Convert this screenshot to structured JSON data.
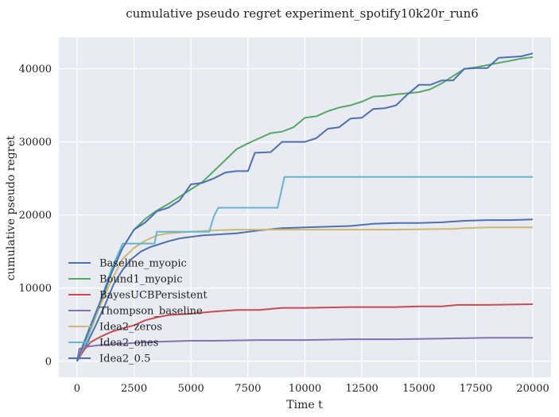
{
  "chart_data": {
    "type": "line",
    "title": "cumulative pseudo regret experiment_spotify10k20r_run6",
    "xlabel": "Time t",
    "ylabel": "cumulative pseudo regret",
    "xlim": [
      -800,
      20800
    ],
    "ylim": [
      -2200,
      44300
    ],
    "xticks": [
      0,
      2500,
      5000,
      7500,
      10000,
      12500,
      15000,
      17500,
      20000
    ],
    "yticks": [
      0,
      10000,
      20000,
      30000,
      40000
    ],
    "grid": true,
    "legend_position": "lower-left",
    "series": [
      {
        "name": "Baseline_myopic",
        "color": "#4c72b0",
        "points": [
          [
            0,
            0
          ],
          [
            400,
            2200
          ],
          [
            800,
            4800
          ],
          [
            1200,
            7500
          ],
          [
            1600,
            10500
          ],
          [
            2000,
            12500
          ],
          [
            2400,
            14000
          ],
          [
            2800,
            15000
          ],
          [
            3200,
            15600
          ],
          [
            3600,
            16000
          ],
          [
            4000,
            16400
          ],
          [
            4500,
            16800
          ],
          [
            5000,
            17000
          ],
          [
            5500,
            17200
          ],
          [
            6000,
            17300
          ],
          [
            7000,
            17500
          ],
          [
            8000,
            17900
          ],
          [
            9000,
            18200
          ],
          [
            10000,
            18300
          ],
          [
            11000,
            18400
          ],
          [
            12000,
            18500
          ],
          [
            13000,
            18800
          ],
          [
            14000,
            18900
          ],
          [
            15000,
            18900
          ],
          [
            16000,
            19000
          ],
          [
            17000,
            19200
          ],
          [
            18000,
            19300
          ],
          [
            19000,
            19300
          ],
          [
            20000,
            19400
          ]
        ]
      },
      {
        "name": "Bound1_myopic",
        "color": "#55a868",
        "points": [
          [
            0,
            0
          ],
          [
            500,
            3500
          ],
          [
            1000,
            7500
          ],
          [
            1500,
            12000
          ],
          [
            2000,
            15500
          ],
          [
            2500,
            18000
          ],
          [
            3000,
            19500
          ],
          [
            3500,
            20600
          ],
          [
            4000,
            21500
          ],
          [
            4500,
            22500
          ],
          [
            5000,
            23500
          ],
          [
            5500,
            24500
          ],
          [
            6000,
            26000
          ],
          [
            6500,
            27500
          ],
          [
            7000,
            29000
          ],
          [
            7500,
            29800
          ],
          [
            8000,
            30500
          ],
          [
            8500,
            31200
          ],
          [
            9000,
            31400
          ],
          [
            9500,
            32000
          ],
          [
            10000,
            33300
          ],
          [
            10500,
            33500
          ],
          [
            11000,
            34200
          ],
          [
            11500,
            34700
          ],
          [
            12000,
            35000
          ],
          [
            12500,
            35500
          ],
          [
            13000,
            36200
          ],
          [
            13500,
            36300
          ],
          [
            14000,
            36500
          ],
          [
            15000,
            36800
          ],
          [
            15500,
            37200
          ],
          [
            16000,
            38000
          ],
          [
            16500,
            39000
          ],
          [
            17000,
            40000
          ],
          [
            17500,
            40200
          ],
          [
            18000,
            40500
          ],
          [
            18500,
            40800
          ],
          [
            19000,
            41100
          ],
          [
            19500,
            41400
          ],
          [
            20000,
            41600
          ]
        ]
      },
      {
        "name": "BayesUCBPersistent",
        "color": "#c44e52",
        "points": [
          [
            0,
            0
          ],
          [
            300,
            1500
          ],
          [
            600,
            2600
          ],
          [
            1000,
            3300
          ],
          [
            1500,
            4000
          ],
          [
            2000,
            4500
          ],
          [
            2500,
            4900
          ],
          [
            3000,
            5600
          ],
          [
            3500,
            6000
          ],
          [
            4000,
            6300
          ],
          [
            5000,
            6500
          ],
          [
            6000,
            6800
          ],
          [
            6500,
            6900
          ],
          [
            7000,
            7000
          ],
          [
            8000,
            7000
          ],
          [
            9000,
            7300
          ],
          [
            10000,
            7300
          ],
          [
            12000,
            7400
          ],
          [
            14000,
            7400
          ],
          [
            15000,
            7500
          ],
          [
            16000,
            7500
          ],
          [
            16700,
            7700
          ],
          [
            18000,
            7700
          ],
          [
            20000,
            7800
          ]
        ]
      },
      {
        "name": "Thompson_baseline",
        "color": "#8172b2",
        "points": [
          [
            0,
            0
          ],
          [
            100,
            1700
          ],
          [
            500,
            2000
          ],
          [
            1000,
            2200
          ],
          [
            2000,
            2400
          ],
          [
            3000,
            2600
          ],
          [
            4000,
            2700
          ],
          [
            5000,
            2800
          ],
          [
            6000,
            2800
          ],
          [
            8000,
            2900
          ],
          [
            10000,
            2900
          ],
          [
            12000,
            3000
          ],
          [
            14000,
            3000
          ],
          [
            16000,
            3100
          ],
          [
            18000,
            3200
          ],
          [
            20000,
            3200
          ]
        ]
      },
      {
        "name": "Idea2_zeros",
        "color": "#ccb974",
        "points": [
          [
            0,
            0
          ],
          [
            500,
            3500
          ],
          [
            1000,
            7500
          ],
          [
            1500,
            11000
          ],
          [
            2000,
            14000
          ],
          [
            2500,
            15500
          ],
          [
            3000,
            16500
          ],
          [
            3500,
            17200
          ],
          [
            4000,
            17500
          ],
          [
            5000,
            17700
          ],
          [
            6000,
            17900
          ],
          [
            7000,
            18000
          ],
          [
            8000,
            18000
          ],
          [
            10000,
            18000
          ],
          [
            12000,
            18000
          ],
          [
            14000,
            18000
          ],
          [
            16000,
            18100
          ],
          [
            16500,
            18100
          ],
          [
            17000,
            18200
          ],
          [
            18000,
            18300
          ],
          [
            20000,
            18300
          ]
        ]
      },
      {
        "name": "Idea2_ones",
        "color": "#64b5cd",
        "points": [
          [
            0,
            0
          ],
          [
            500,
            3700
          ],
          [
            1000,
            8000
          ],
          [
            1500,
            12500
          ],
          [
            2000,
            16100
          ],
          [
            2500,
            16100
          ],
          [
            3000,
            16100
          ],
          [
            3400,
            16100
          ],
          [
            3500,
            17700
          ],
          [
            4000,
            17700
          ],
          [
            5000,
            17700
          ],
          [
            5800,
            17700
          ],
          [
            6000,
            19800
          ],
          [
            6200,
            21000
          ],
          [
            7000,
            21000
          ],
          [
            8000,
            21000
          ],
          [
            8800,
            21000
          ],
          [
            9100,
            25200
          ],
          [
            10000,
            25200
          ],
          [
            12000,
            25200
          ],
          [
            14000,
            25200
          ],
          [
            16000,
            25200
          ],
          [
            18000,
            25200
          ],
          [
            20000,
            25200
          ]
        ]
      },
      {
        "name": "Idea2_0.5",
        "color": "#4c72b0",
        "points": [
          [
            0,
            0
          ],
          [
            500,
            4200
          ],
          [
            1000,
            8000
          ],
          [
            1500,
            12000
          ],
          [
            2000,
            15500
          ],
          [
            2500,
            18000
          ],
          [
            3000,
            19000
          ],
          [
            3500,
            20500
          ],
          [
            4000,
            21000
          ],
          [
            4500,
            22000
          ],
          [
            5000,
            24200
          ],
          [
            5500,
            24400
          ],
          [
            6000,
            25000
          ],
          [
            6500,
            25800
          ],
          [
            7000,
            26000
          ],
          [
            7500,
            26000
          ],
          [
            7800,
            28500
          ],
          [
            8500,
            28600
          ],
          [
            9000,
            30000
          ],
          [
            10000,
            30000
          ],
          [
            10500,
            30500
          ],
          [
            11000,
            31800
          ],
          [
            11500,
            32000
          ],
          [
            12000,
            33200
          ],
          [
            12500,
            33300
          ],
          [
            13000,
            34500
          ],
          [
            13500,
            34600
          ],
          [
            14000,
            35000
          ],
          [
            14500,
            36500
          ],
          [
            15000,
            37800
          ],
          [
            15500,
            37800
          ],
          [
            16000,
            38400
          ],
          [
            16500,
            38400
          ],
          [
            17000,
            40000
          ],
          [
            17500,
            40100
          ],
          [
            18000,
            40100
          ],
          [
            18500,
            41500
          ],
          [
            19000,
            41600
          ],
          [
            19500,
            41700
          ],
          [
            20000,
            42100
          ]
        ]
      }
    ]
  }
}
